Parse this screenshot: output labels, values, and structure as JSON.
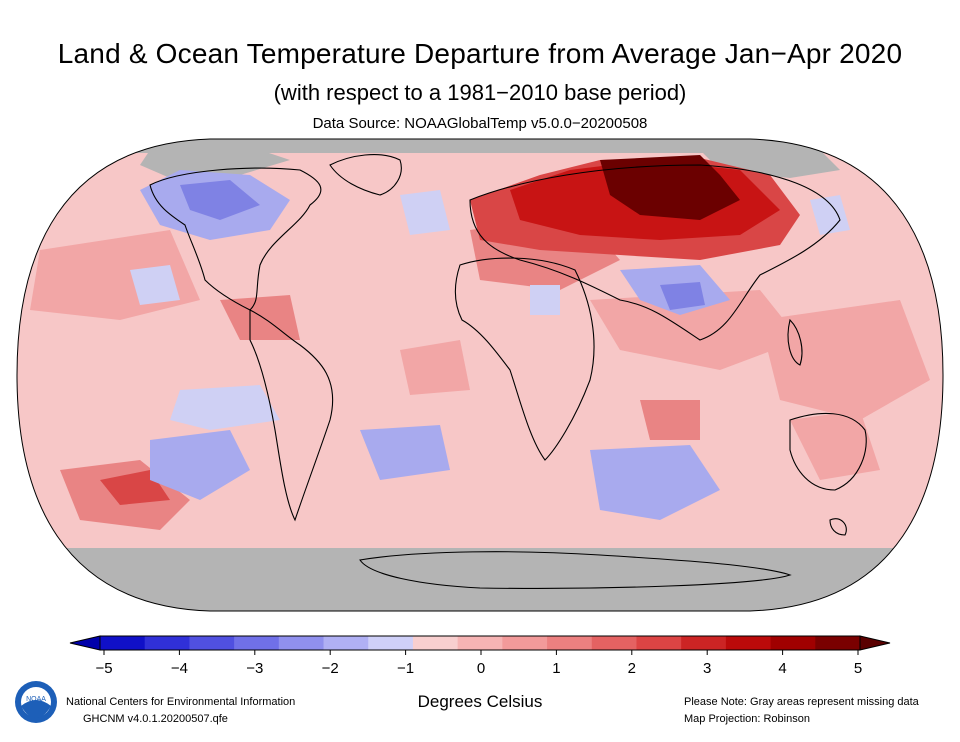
{
  "header": {
    "title": "Land & Ocean Temperature Departure from Average Jan−Apr 2020",
    "subtitle": "(with respect to a 1981−2010 base period)",
    "data_source": "Data Source: NOAAGlobalTemp v5.0.0−20200508"
  },
  "colorbar": {
    "ticks": [
      "−5",
      "−4",
      "−3",
      "−2",
      "−1",
      "0",
      "1",
      "2",
      "3",
      "4",
      "5"
    ],
    "unit_label": "Degrees Celsius",
    "colors": [
      "#1010c8",
      "#3030d8",
      "#5050e0",
      "#7070e8",
      "#9090ee",
      "#b0b0f4",
      "#cfd0f8",
      "#f8cfcf",
      "#f6b4b4",
      "#f29a9a",
      "#ec8080",
      "#e46262",
      "#dc4444",
      "#cc2424",
      "#bb0a0a",
      "#a00000",
      "#7a0000"
    ]
  },
  "footer": {
    "org": "National Centers for Environmental Information",
    "dataset": "GHCNM v4.0.1.20200507.qfe",
    "note": "Please Note: Gray areas represent missing data",
    "projection": "Map Projection: Robinson"
  },
  "logo": {
    "text": "NOAA"
  },
  "map_colors": {
    "missing": "#b4b4b4",
    "base_warm": "#f7c7c7",
    "warm1": "#f2a6a6",
    "warm2": "#e98484",
    "hot1": "#d94646",
    "hot2": "#c81414",
    "hot3": "#6b0000",
    "cool1": "#cfd0f4",
    "cool2": "#a8aaee",
    "cool3": "#7f82e4",
    "outline": "#000000"
  }
}
